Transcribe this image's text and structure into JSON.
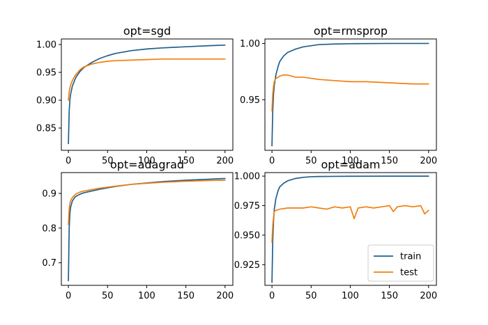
{
  "chart_data": [
    {
      "type": "line",
      "title": "opt=sgd",
      "xlabel": "",
      "ylabel": "",
      "xlim": [
        -9,
        210
      ],
      "ylim": [
        0.81,
        1.01
      ],
      "xticks": [
        0,
        50,
        100,
        150,
        200
      ],
      "yticks": [
        0.85,
        0.9,
        0.95,
        1.0
      ],
      "ytick_labels": [
        "0.85",
        "0.90",
        "0.95",
        "1.00"
      ],
      "series": [
        {
          "name": "train",
          "color": "#1f5f8f",
          "x": [
            0,
            1,
            2,
            3,
            5,
            8,
            10,
            15,
            20,
            30,
            40,
            50,
            60,
            80,
            100,
            120,
            150,
            180,
            200
          ],
          "y": [
            0.822,
            0.88,
            0.902,
            0.912,
            0.925,
            0.936,
            0.942,
            0.952,
            0.959,
            0.968,
            0.975,
            0.98,
            0.984,
            0.989,
            0.992,
            0.994,
            0.996,
            0.998,
            0.999
          ]
        },
        {
          "name": "test",
          "color": "#f07f0e",
          "x": [
            0,
            1,
            2,
            3,
            5,
            8,
            10,
            15,
            20,
            30,
            40,
            50,
            60,
            80,
            100,
            120,
            150,
            180,
            200
          ],
          "y": [
            0.9,
            0.915,
            0.922,
            0.928,
            0.935,
            0.943,
            0.947,
            0.955,
            0.96,
            0.965,
            0.968,
            0.97,
            0.971,
            0.972,
            0.973,
            0.974,
            0.974,
            0.974,
            0.974
          ]
        }
      ]
    },
    {
      "type": "line",
      "title": "opt=rmsprop",
      "xlabel": "",
      "ylabel": "",
      "xlim": [
        -9,
        210
      ],
      "ylim": [
        0.905,
        1.004
      ],
      "xticks": [
        0,
        50,
        100,
        150,
        200
      ],
      "yticks": [
        0.95,
        1.0
      ],
      "ytick_labels": [
        "0.95",
        "1.00"
      ],
      "series": [
        {
          "name": "train",
          "color": "#1f5f8f",
          "x": [
            0,
            1,
            2,
            3,
            5,
            8,
            10,
            15,
            20,
            30,
            40,
            50,
            60,
            80,
            100,
            150,
            200
          ],
          "y": [
            0.909,
            0.94,
            0.955,
            0.963,
            0.972,
            0.98,
            0.984,
            0.989,
            0.992,
            0.995,
            0.997,
            0.998,
            0.999,
            0.9995,
            0.9998,
            1.0,
            1.0
          ]
        },
        {
          "name": "test",
          "color": "#f07f0e",
          "x": [
            0,
            1,
            2,
            3,
            5,
            8,
            10,
            15,
            20,
            25,
            30,
            40,
            50,
            60,
            80,
            100,
            120,
            150,
            180,
            200
          ],
          "y": [
            0.94,
            0.955,
            0.962,
            0.966,
            0.969,
            0.97,
            0.971,
            0.972,
            0.972,
            0.971,
            0.97,
            0.97,
            0.969,
            0.968,
            0.967,
            0.966,
            0.966,
            0.965,
            0.964,
            0.964
          ]
        }
      ]
    },
    {
      "type": "line",
      "title": "opt=adagrad",
      "xlabel": "",
      "ylabel": "",
      "xlim": [
        -9,
        210
      ],
      "ylim": [
        0.635,
        0.96
      ],
      "xticks": [
        0,
        50,
        100,
        150,
        200
      ],
      "yticks": [
        0.7,
        0.8,
        0.9
      ],
      "ytick_labels": [
        "0.7",
        "0.8",
        "0.9"
      ],
      "series": [
        {
          "name": "train",
          "color": "#1f5f8f",
          "x": [
            0,
            1,
            2,
            3,
            5,
            8,
            10,
            15,
            20,
            30,
            40,
            50,
            60,
            80,
            100,
            120,
            150,
            180,
            200
          ],
          "y": [
            0.648,
            0.8,
            0.845,
            0.862,
            0.878,
            0.888,
            0.892,
            0.898,
            0.902,
            0.907,
            0.912,
            0.916,
            0.92,
            0.926,
            0.93,
            0.934,
            0.938,
            0.941,
            0.943
          ]
        },
        {
          "name": "test",
          "color": "#f07f0e",
          "x": [
            0,
            1,
            2,
            3,
            5,
            8,
            10,
            15,
            20,
            30,
            40,
            50,
            60,
            80,
            100,
            120,
            150,
            180,
            200
          ],
          "y": [
            0.81,
            0.855,
            0.872,
            0.88,
            0.888,
            0.895,
            0.899,
            0.904,
            0.907,
            0.911,
            0.915,
            0.918,
            0.921,
            0.926,
            0.929,
            0.932,
            0.935,
            0.937,
            0.938
          ]
        }
      ]
    },
    {
      "type": "line",
      "title": "opt=adam",
      "xlabel": "",
      "ylabel": "",
      "xlim": [
        -9,
        210
      ],
      "ylim": [
        0.9075,
        1.003
      ],
      "xticks": [
        0,
        50,
        100,
        150,
        200
      ],
      "yticks": [
        0.925,
        0.95,
        0.975,
        1.0
      ],
      "ytick_labels": [
        "0.925",
        "0.950",
        "0.975",
        "1.000"
      ],
      "legend": {
        "position": "lower-right",
        "entries": [
          "train",
          "test"
        ]
      },
      "series": [
        {
          "name": "train",
          "color": "#1f5f8f",
          "x": [
            0,
            1,
            2,
            3,
            5,
            8,
            10,
            15,
            20,
            30,
            40,
            50,
            60,
            80,
            100,
            150,
            200
          ],
          "y": [
            0.91,
            0.945,
            0.962,
            0.972,
            0.981,
            0.988,
            0.991,
            0.994,
            0.996,
            0.998,
            0.999,
            0.9995,
            0.9997,
            0.9998,
            0.9999,
            1.0,
            1.0
          ]
        },
        {
          "name": "test",
          "color": "#f07f0e",
          "x": [
            0,
            1,
            2,
            3,
            5,
            10,
            20,
            30,
            40,
            50,
            60,
            70,
            80,
            90,
            100,
            105,
            110,
            120,
            130,
            140,
            150,
            155,
            160,
            170,
            180,
            190,
            195,
            200
          ],
          "y": [
            0.944,
            0.958,
            0.965,
            0.97,
            0.971,
            0.972,
            0.973,
            0.973,
            0.973,
            0.974,
            0.973,
            0.972,
            0.974,
            0.973,
            0.974,
            0.964,
            0.973,
            0.974,
            0.973,
            0.974,
            0.975,
            0.97,
            0.974,
            0.975,
            0.974,
            0.975,
            0.968,
            0.971
          ]
        }
      ]
    }
  ]
}
